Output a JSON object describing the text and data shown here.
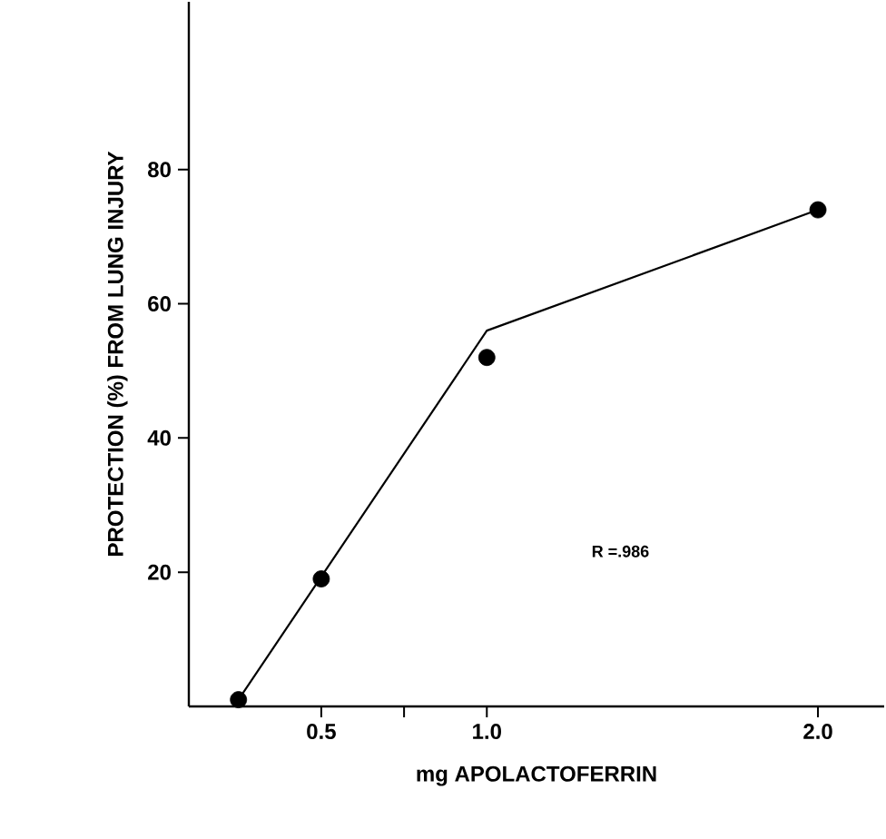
{
  "chart_data": {
    "type": "scatter",
    "xlabel": "mg APOLACTOFERRIN",
    "ylabel": "PROTECTION (%) FROM LUNG INJURY",
    "xlim": [
      0.1,
      2.2
    ],
    "ylim": [
      0,
      105
    ],
    "xticks": [
      0.5,
      {
        "value": 0.75,
        "label": null
      },
      {
        "value": 1.0,
        "label": "1.0"
      },
      {
        "value": 2.0,
        "label": "2.0"
      }
    ],
    "yticks": [
      {
        "value": 20,
        "label": "20"
      },
      {
        "value": 40,
        "label": "40"
      },
      {
        "value": 60,
        "label": "60"
      },
      {
        "value": 80,
        "label": "80"
      }
    ],
    "grid": false,
    "series": [
      {
        "color": "#000000",
        "marker": "circle",
        "x": [
          0.25,
          0.5,
          1.0,
          2.0
        ],
        "values": [
          1,
          19,
          52,
          74
        ]
      },
      {
        "type": "line",
        "color": "#000000",
        "marker": "none",
        "x": [
          0.25,
          1.0,
          2.0
        ],
        "values": [
          1,
          56,
          74
        ]
      }
    ],
    "annotations": [
      "R =.986"
    ]
  }
}
